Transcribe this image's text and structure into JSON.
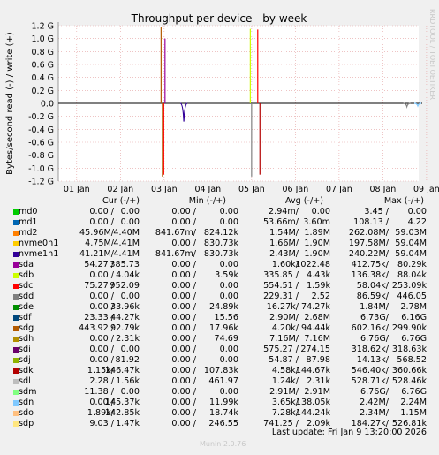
{
  "chart_data": {
    "type": "line",
    "title": "Throughput per device - by week",
    "ylabel": "Bytes/second read (-) / write (+)",
    "side_label": "RRDTOOL / TOBI OETIKER",
    "ylim": [
      -1200000000,
      1200000000
    ],
    "y_ticks": [
      {
        "value": 1200000000,
        "label": "1.2 G"
      },
      {
        "value": 1000000000,
        "label": "1.0 G"
      },
      {
        "value": 800000000,
        "label": "0.8 G"
      },
      {
        "value": 600000000,
        "label": "0.6 G"
      },
      {
        "value": 400000000,
        "label": "0.4 G"
      },
      {
        "value": 200000000,
        "label": "0.2 G"
      },
      {
        "value": 0,
        "label": "0.0"
      },
      {
        "value": -200000000,
        "label": "-0.2 G"
      },
      {
        "value": -400000000,
        "label": "-0.4 G"
      },
      {
        "value": -600000000,
        "label": "-0.6 G"
      },
      {
        "value": -800000000,
        "label": "-0.8 G"
      },
      {
        "value": -1000000000,
        "label": "-1.0 G"
      },
      {
        "value": -1200000000,
        "label": "-1.2 G"
      }
    ],
    "x_range_days": [
      0.58,
      8.82
    ],
    "x_ticks": [
      {
        "day": 1,
        "label": "01 Jan"
      },
      {
        "day": 2,
        "label": "02 Jan"
      },
      {
        "day": 3,
        "label": "03 Jan"
      },
      {
        "day": 4,
        "label": "04 Jan"
      },
      {
        "day": 5,
        "label": "05 Jan"
      },
      {
        "day": 6,
        "label": "06 Jan"
      },
      {
        "day": 7,
        "label": "07 Jan"
      },
      {
        "day": 8,
        "label": "08 Jan"
      },
      {
        "day": 9,
        "label": "09 Jan"
      }
    ],
    "grid": true,
    "series_spikes": [
      {
        "series": "sdg",
        "day": 2.93,
        "value": 1180000000
      },
      {
        "series": "sdg",
        "day": 2.96,
        "value": -1130000000
      },
      {
        "series": "sdc",
        "day": 2.99,
        "value": -1100000000
      },
      {
        "series": "sda",
        "day": 3.02,
        "value": 1000000000
      },
      {
        "series": "nvme1n1",
        "day": 3.45,
        "value": -280000000
      },
      {
        "series": "sdb",
        "day": 4.97,
        "value": 1150000000
      },
      {
        "series": "sdd",
        "day": 5.0,
        "value": -1130000000
      },
      {
        "series": "sdc",
        "day": 5.14,
        "value": 1140000000
      },
      {
        "series": "sdk",
        "day": 5.19,
        "value": -1100000000
      },
      {
        "series": "sdd",
        "day": 8.55,
        "value": -50000000
      },
      {
        "series": "sdn",
        "day": 8.8,
        "value": -40000000
      }
    ],
    "columns": [
      "Cur (-/+)",
      "Min (-/+)",
      "Avg (-/+)",
      "Max (-/+)"
    ],
    "series": [
      {
        "name": "md0",
        "color": "#00cc00",
        "cur": [
          "0.00 /",
          "0.00"
        ],
        "min": [
          "0.00 /",
          "0.00"
        ],
        "avg": [
          "2.94m/",
          "0.00"
        ],
        "max": [
          "3.45 /",
          "0.00"
        ]
      },
      {
        "name": "md1",
        "color": "#0066b3",
        "cur": [
          "0.00 /",
          "0.00"
        ],
        "min": [
          "0.00 /",
          "0.00"
        ],
        "avg": [
          "53.66m/",
          "3.60m"
        ],
        "max": [
          "108.13 /",
          "4.22"
        ]
      },
      {
        "name": "md2",
        "color": "#ff8000",
        "cur": [
          "45.96M/",
          "4.40M"
        ],
        "min": [
          "841.67m/",
          "824.12k"
        ],
        "avg": [
          "1.54M/",
          "1.89M"
        ],
        "max": [
          "262.08M/",
          "59.03M"
        ]
      },
      {
        "name": "nvme0n1",
        "color": "#ffcc00",
        "cur": [
          "4.75M/",
          "4.41M"
        ],
        "min": [
          "0.00 /",
          "830.73k"
        ],
        "avg": [
          "1.66M/",
          "1.90M"
        ],
        "max": [
          "197.58M/",
          "59.04M"
        ]
      },
      {
        "name": "nvme1n1",
        "color": "#330099",
        "cur": [
          "41.21M/",
          "4.41M"
        ],
        "min": [
          "841.67m/",
          "830.73k"
        ],
        "avg": [
          "2.43M/",
          "1.90M"
        ],
        "max": [
          "240.22M/",
          "59.04M"
        ]
      },
      {
        "name": "sda",
        "color": "#990099",
        "cur": [
          "54.27 /",
          "385.73"
        ],
        "min": [
          "0.00 /",
          "0.00"
        ],
        "avg": [
          "1.60k/",
          "1022.48"
        ],
        "max": [
          "412.75k/",
          "80.29k"
        ]
      },
      {
        "name": "sdb",
        "color": "#ccff00",
        "cur": [
          "0.00 /",
          "4.04k"
        ],
        "min": [
          "0.00 /",
          "3.59k"
        ],
        "avg": [
          "335.85 /",
          "4.43k"
        ],
        "max": [
          "136.38k/",
          "88.04k"
        ]
      },
      {
        "name": "sdc",
        "color": "#ff0000",
        "cur": [
          "75.27 /",
          "952.09"
        ],
        "min": [
          "0.00 /",
          "0.00"
        ],
        "avg": [
          "554.51 /",
          "1.59k"
        ],
        "max": [
          "58.04k/",
          "253.09k"
        ]
      },
      {
        "name": "sdd",
        "color": "#808080",
        "cur": [
          "0.00 /",
          "0.00"
        ],
        "min": [
          "0.00 /",
          "0.00"
        ],
        "avg": [
          "229.31 /",
          "2.52"
        ],
        "max": [
          "86.59k/",
          "446.05"
        ]
      },
      {
        "name": "sde",
        "color": "#008f00",
        "cur": [
          "0.00 /",
          "33.96k"
        ],
        "min": [
          "0.00 /",
          "24.89k"
        ],
        "avg": [
          "16.27k/",
          "74.27k"
        ],
        "max": [
          "1.84M/",
          "2.78M"
        ]
      },
      {
        "name": "sdf",
        "color": "#00487d",
        "cur": [
          "23.33 /",
          "44.27k"
        ],
        "min": [
          "0.00 /",
          "15.56"
        ],
        "avg": [
          "2.90M/",
          "2.68M"
        ],
        "max": [
          "6.73G/",
          "6.16G"
        ]
      },
      {
        "name": "sdg",
        "color": "#b35a00",
        "cur": [
          "443.92 /",
          "92.79k"
        ],
        "min": [
          "0.00 /",
          "17.96k"
        ],
        "avg": [
          "4.20k/",
          "94.44k"
        ],
        "max": [
          "602.16k/",
          "299.90k"
        ]
      },
      {
        "name": "sdh",
        "color": "#b38f00",
        "cur": [
          "0.00 /",
          "2.31k"
        ],
        "min": [
          "0.00 /",
          "74.69"
        ],
        "avg": [
          "7.16M/",
          "7.16M"
        ],
        "max": [
          "6.76G/",
          "6.76G"
        ]
      },
      {
        "name": "sdi",
        "color": "#6b006b",
        "cur": [
          "0.00 /",
          "0.00"
        ],
        "min": [
          "0.00 /",
          "0.00"
        ],
        "avg": [
          "575.27 /",
          "274.15"
        ],
        "max": [
          "318.62k/",
          "318.63k"
        ]
      },
      {
        "name": "sdj",
        "color": "#8fb300",
        "cur": [
          "0.00 /",
          "81.92"
        ],
        "min": [
          "0.00 /",
          "0.00"
        ],
        "avg": [
          "54.87 /",
          "87.98"
        ],
        "max": [
          "14.13k/",
          "568.52"
        ]
      },
      {
        "name": "sdk",
        "color": "#b30000",
        "cur": [
          "1.15k/",
          "146.47k"
        ],
        "min": [
          "0.00 /",
          "107.83k"
        ],
        "avg": [
          "4.58k/",
          "144.67k"
        ],
        "max": [
          "546.40k/",
          "360.66k"
        ]
      },
      {
        "name": "sdl",
        "color": "#bebebe",
        "cur": [
          "2.28 /",
          "1.56k"
        ],
        "min": [
          "0.00 /",
          "461.97"
        ],
        "avg": [
          "1.24k/",
          "2.31k"
        ],
        "max": [
          "528.71k/",
          "528.46k"
        ]
      },
      {
        "name": "sdm",
        "color": "#80ff80",
        "cur": [
          "11.38 /",
          "0.00"
        ],
        "min": [
          "0.00 /",
          "0.00"
        ],
        "avg": [
          "2.91M/",
          "2.91M"
        ],
        "max": [
          "6.76G/",
          "6.76G"
        ]
      },
      {
        "name": "sdn",
        "color": "#80c9ff",
        "cur": [
          "0.00 /",
          "145.37k"
        ],
        "min": [
          "0.00 /",
          "11.99k"
        ],
        "avg": [
          "3.65k/",
          "138.05k"
        ],
        "max": [
          "2.42M/",
          "2.24M"
        ]
      },
      {
        "name": "sdo",
        "color": "#ffc080",
        "cur": [
          "1.89k/",
          "142.85k"
        ],
        "min": [
          "0.00 /",
          "18.74k"
        ],
        "avg": [
          "7.28k/",
          "144.24k"
        ],
        "max": [
          "2.34M/",
          "1.15M"
        ]
      },
      {
        "name": "sdp",
        "color": "#ffe680",
        "cur": [
          "9.03 /",
          "1.47k"
        ],
        "min": [
          "0.00 /",
          "246.55"
        ],
        "avg": [
          "741.25 /",
          "2.09k"
        ],
        "max": [
          "184.27k/",
          "526.81k"
        ]
      }
    ]
  },
  "footer": {
    "last_update": "Last update: Fri Jan  9 13:20:00 2026",
    "munin": "Munin 2.0.76"
  }
}
